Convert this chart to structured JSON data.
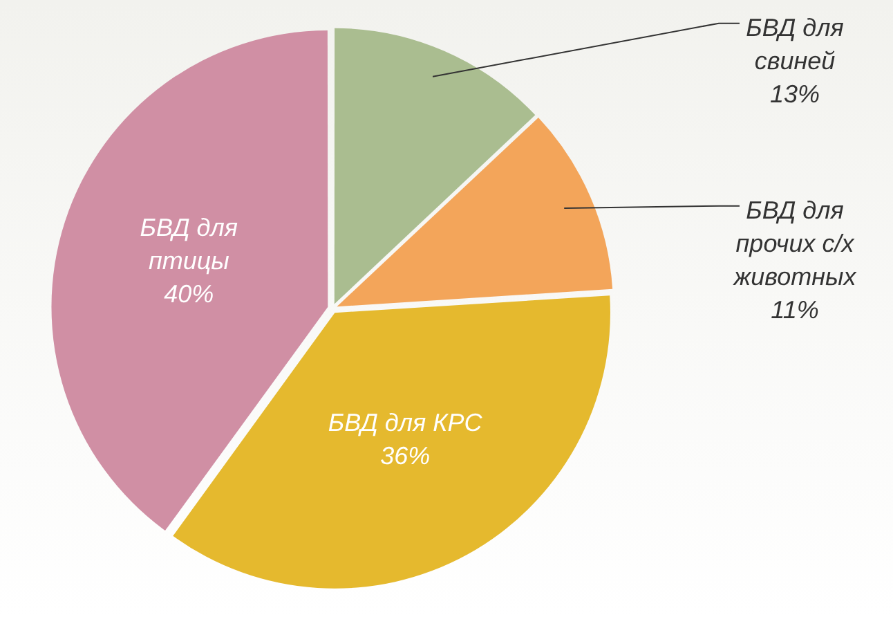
{
  "chart_data": {
    "type": "pie",
    "categories": [
      "БВД для свиней",
      "БВД для прочих с/х животных",
      "БВД для КРС",
      "БВД для птицы"
    ],
    "values": [
      13,
      11,
      36,
      40
    ],
    "value_labels": [
      "13%",
      "11%",
      "36%",
      "40%"
    ],
    "colors": [
      "#aabd90",
      "#f3a55a",
      "#e5b92e",
      "#d08fa4"
    ],
    "legend": false
  }
}
